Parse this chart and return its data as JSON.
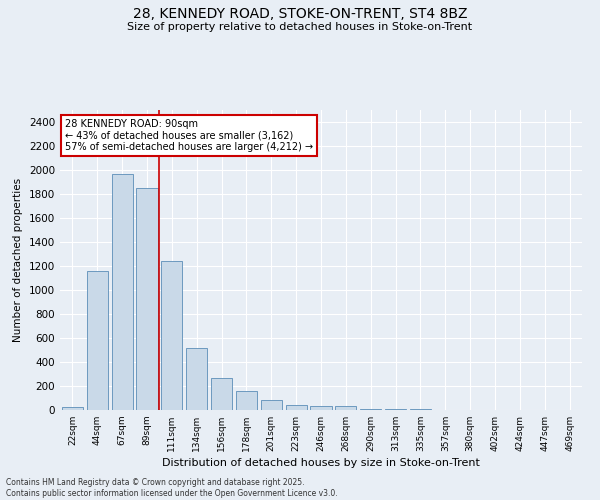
{
  "title_line1": "28, KENNEDY ROAD, STOKE-ON-TRENT, ST4 8BZ",
  "title_line2": "Size of property relative to detached houses in Stoke-on-Trent",
  "xlabel": "Distribution of detached houses by size in Stoke-on-Trent",
  "ylabel": "Number of detached properties",
  "categories": [
    "22sqm",
    "44sqm",
    "67sqm",
    "89sqm",
    "111sqm",
    "134sqm",
    "156sqm",
    "178sqm",
    "201sqm",
    "223sqm",
    "246sqm",
    "268sqm",
    "290sqm",
    "313sqm",
    "335sqm",
    "357sqm",
    "380sqm",
    "402sqm",
    "424sqm",
    "447sqm",
    "469sqm"
  ],
  "values": [
    25,
    1160,
    1970,
    1850,
    1240,
    515,
    270,
    155,
    85,
    45,
    30,
    30,
    10,
    5,
    5,
    3,
    2,
    2,
    2,
    2,
    2
  ],
  "bar_color": "#c9d9e8",
  "bar_edge_color": "#5b8db8",
  "vline_index": 3,
  "vline_color": "#cc0000",
  "annotation_title": "28 KENNEDY ROAD: 90sqm",
  "annotation_line1": "← 43% of detached houses are smaller (3,162)",
  "annotation_line2": "57% of semi-detached houses are larger (4,212) →",
  "annotation_box_color": "#ffffff",
  "annotation_box_edge": "#cc0000",
  "ylim": [
    0,
    2500
  ],
  "yticks": [
    0,
    200,
    400,
    600,
    800,
    1000,
    1200,
    1400,
    1600,
    1800,
    2000,
    2200,
    2400
  ],
  "bg_color": "#e8eef5",
  "grid_color": "#ffffff",
  "footer_line1": "Contains HM Land Registry data © Crown copyright and database right 2025.",
  "footer_line2": "Contains public sector information licensed under the Open Government Licence v3.0."
}
